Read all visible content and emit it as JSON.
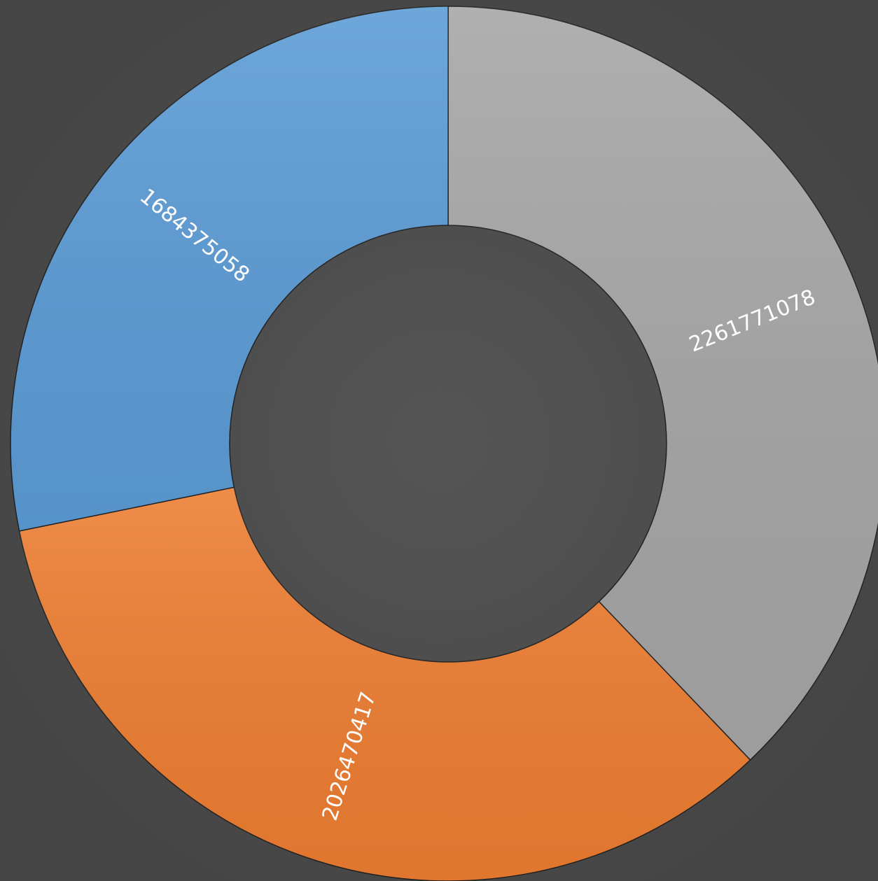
{
  "chart_data": {
    "type": "donut",
    "categories": [
      null,
      null,
      null
    ],
    "series": [
      {
        "name": null,
        "values": [
          2261771078,
          2026470417,
          1684375058
        ]
      }
    ],
    "colors": [
      "#a5a5a5",
      "#ed7d31",
      "#5b9bd5"
    ],
    "start_angle": 0,
    "direction": "clockwise"
  }
}
